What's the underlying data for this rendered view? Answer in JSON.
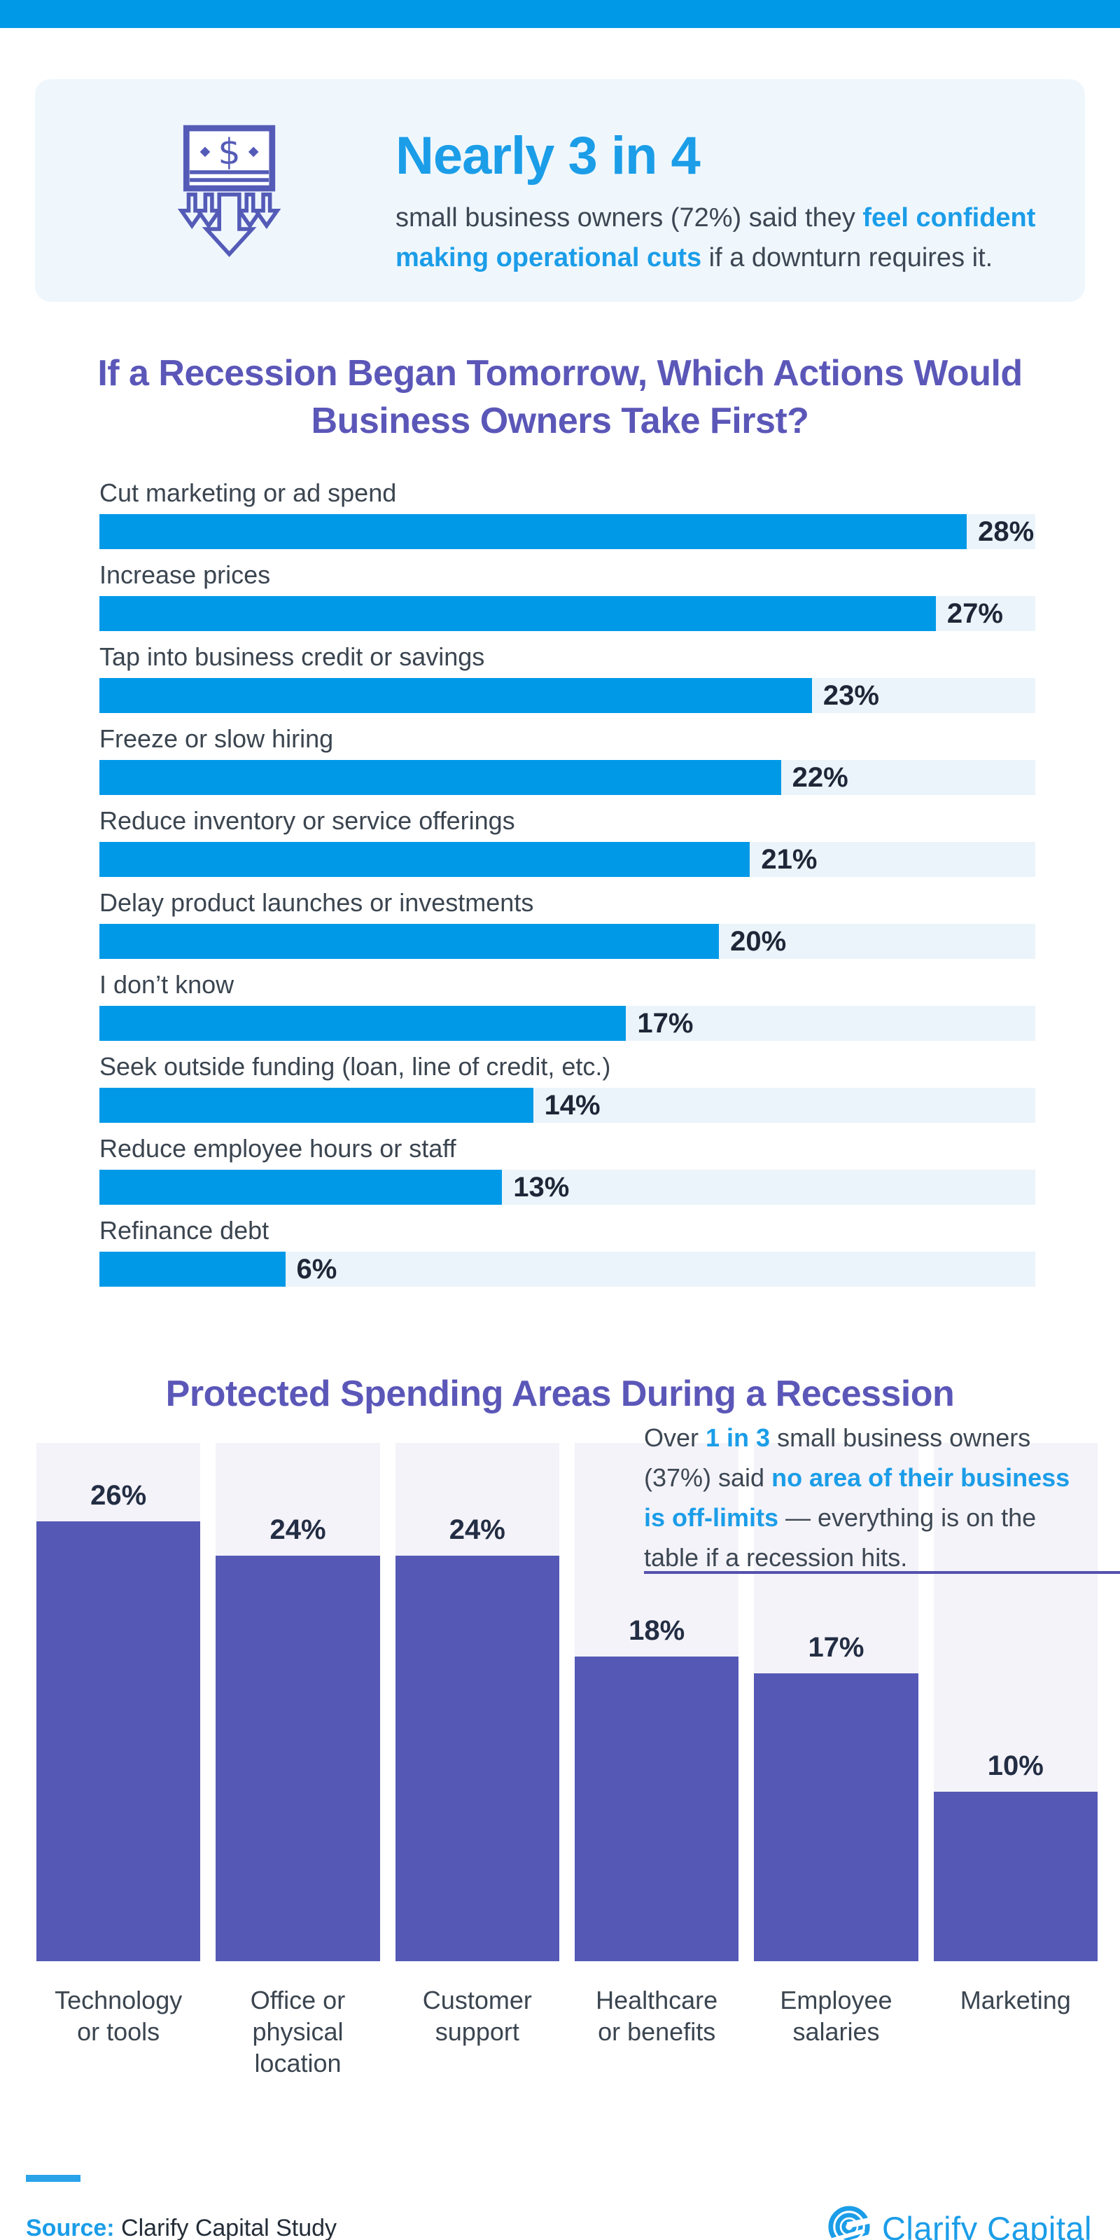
{
  "colors": {
    "accent_blue": "#0099e8",
    "text_blue": "#1b9de8",
    "title_purple": "#5b57b8",
    "bar_blue": "#0099e8",
    "bar_blue_track": "#ebf4fa",
    "bar_purple": "#5559b5",
    "bar_purple_track": "#f4f3f9",
    "divider_purple": "#5551ad",
    "callout_background": "#eff7fd",
    "dark_text": "#3b4550",
    "value_text": "#1d2737"
  },
  "callout": {
    "icon": "cash-down-arrows-icon",
    "headline": "Nearly 3 in 4",
    "body_part1": "small business owners (72%) said they ",
    "body_highlight": "feel confident making operational cuts",
    "body_part2": " if a downturn requires it."
  },
  "chart1": {
    "title_line1": "If a Recession Began Tomorrow, Which Actions Would",
    "title_line2": "Business Owners Take First?"
  },
  "chart2": {
    "title": "Protected Spending Areas During a Recession",
    "note_part1": "Over ",
    "note_hl1": "1 in 3",
    "note_part2": " small business owners (37%) said ",
    "note_hl2": "no area of their business is off-limits",
    "note_part3": " — everything is on the table if a recession hits."
  },
  "chart_data": [
    {
      "type": "bar",
      "orientation": "horizontal",
      "title": "If a Recession Began Tomorrow, Which Actions Would Business Owners Take First?",
      "categories": [
        "Cut marketing or ad spend",
        "Increase prices",
        "Tap into business credit or savings",
        "Freeze or slow hiring",
        "Reduce inventory or service offerings",
        "Delay product launches or investments",
        "I don’t know",
        "Seek outside funding (loan, line of credit, etc.)",
        "Reduce employee hours or staff",
        "Refinance debt"
      ],
      "values": [
        28,
        27,
        23,
        22,
        21,
        20,
        17,
        14,
        13,
        6
      ],
      "unit": "%",
      "value_labels": [
        "28%",
        "27%",
        "23%",
        "22%",
        "21%",
        "20%",
        "17%",
        "14%",
        "13%",
        "6%"
      ],
      "bar_color": "#0099e8",
      "track_color": "#ebf4fa",
      "xlim": [
        0,
        30.2
      ],
      "grid": false,
      "legend": false
    },
    {
      "type": "bar",
      "orientation": "vertical",
      "title": "Protected Spending Areas During a Recession",
      "categories": [
        "Technology or tools",
        "Office or physical location",
        "Customer support",
        "Healthcare or benefits",
        "Employee salaries",
        "Marketing"
      ],
      "categories_display": [
        "Technology\nor tools",
        "Office or\nphysical location",
        "Customer\nsupport",
        "Healthcare\nor benefits",
        "Employee\nsalaries",
        "Marketing"
      ],
      "values": [
        26,
        24,
        24,
        18,
        17,
        10
      ],
      "unit": "%",
      "value_labels": [
        "26%",
        "24%",
        "24%",
        "18%",
        "17%",
        "10%"
      ],
      "bar_color": "#5559b5",
      "track_color": "#f4f3f9",
      "ylim": [
        0,
        30.7
      ],
      "grid": false,
      "legend": false
    }
  ],
  "footer": {
    "source_label": "Source:",
    "source_text": "Clarify Capital Study",
    "logo_text": "Clarify Capital"
  }
}
